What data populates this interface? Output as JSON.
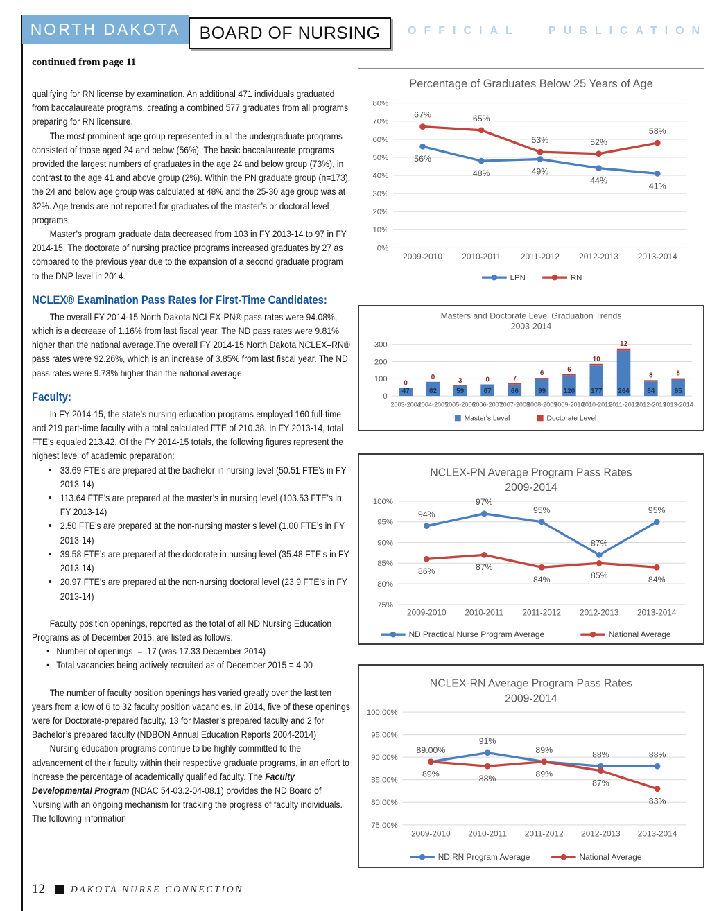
{
  "header": {
    "region_label": "NORTH DAKOTA",
    "org_label": "BOARD OF NURSING",
    "publication_label": "OFFICIAL PUBLICATION",
    "continued_note": "continued from page 11"
  },
  "palette": {
    "masthead_blue": "#7bafd8",
    "publication_pale_blue": "#b9d3ea",
    "heading_blue": "#15539b",
    "series_blue": "#4a7ebe",
    "series_red": "#c2443c"
  },
  "article": {
    "flow": [
      {
        "kind": "p",
        "text": "qualifying for RN license by examination. An additional 471 individuals graduated from baccalaureate programs, creating a combined 577 graduates from all programs preparing for RN licensure."
      },
      {
        "kind": "p",
        "indent": true,
        "text": "The most prominent age group represented in all the undergraduate programs consisted of those aged 24 and below (56%). The basic baccalaureate programs provided the largest numbers of graduates in the age 24 and below group (73%), in contrast to the age 41 and above group (2%). Within the PN graduate group (n=173), the 24 and below age group was calculated at 48% and the 25-30 age group was at 32%. Age trends are not reported for graduates of the master’s or doctoral level programs."
      },
      {
        "kind": "p",
        "indent": true,
        "text": "Master’s program graduate data decreased from 103 in FY 2013-14 to 97 in FY 2014-15. The doctorate of nursing practice programs increased graduates by 27 as compared to the previous year due to the expansion of a second graduate program to the DNP level in 2014."
      },
      {
        "kind": "h",
        "text": "NCLEX® Examination Pass Rates for First-Time Candidates:"
      },
      {
        "kind": "p",
        "indent": true,
        "text": "The overall FY 2014-15 North Dakota NCLEX-PN® pass rates were 94.08%, which is a decrease of 1.16% from last fiscal year. The ND pass rates were 9.81% higher than the national average.The overall FY 2014-15 North Dakota NCLEX–RN® pass rates were 92.26%, which is an increase of 3.85% from last fiscal year. The ND pass rates were 9.73% higher than the national average."
      },
      {
        "kind": "h",
        "text": "Faculty:"
      },
      {
        "kind": "p",
        "indent": true,
        "text": "In FY 2014-15, the state’s nursing education programs employed 160 full-time and 219 part-time faculty with a total calculated FTE of 210.38. In FY 2013-14, total FTE’s equaled 213.42. Of the FY 2014-15 totals, the following figures represent the highest level of academic preparation:"
      },
      {
        "kind": "ul",
        "style": "disc",
        "items": [
          "33.69 FTE’s are prepared at the bachelor in nursing level (50.51 FTE’s in FY 2013-14)",
          "113.64 FTE’s are prepared at the master’s in nursing level (103.53 FTE’s in FY 2013-14)",
          "2.50 FTE’s are prepared at the non-nursing master’s level (1.00 FTE’s in FY 2013-14)",
          "39.58 FTE’s are prepared at the doctorate in nursing level (35.48 FTE’s in FY 2013-14)",
          "20.97 FTE’s are prepared at the non-nursing doctoral level (23.9 FTE’s in FY 2013-14)"
        ]
      },
      {
        "kind": "spacer"
      },
      {
        "kind": "p",
        "indent": true,
        "text": "Faculty position openings, reported as the total of all ND Nursing Education Programs as of December 2015, are listed as follows:"
      },
      {
        "kind": "ul",
        "style": "square",
        "items": [
          "Number of openings  =  17 (was 17.33 December 2014)",
          "Total vacancies being actively recruited as of December 2015 = 4.00"
        ]
      },
      {
        "kind": "spacer"
      },
      {
        "kind": "p",
        "indent": true,
        "text": "The number of faculty position openings has varied greatly over the last ten years from a low of 6 to 32 faculty position vacancies. In 2014, five of these openings were for Doctorate-prepared faculty, 13 for Master’s prepared faculty and 2 for Bachelor’s prepared faculty (NDBON Annual Education Reports 2004-2014)"
      },
      {
        "kind": "p",
        "indent": true,
        "runs": [
          {
            "t": "Nursing education programs continue to be highly committed to the advancement of their faculty within their respective graduate programs, in an effort to increase the percentage of academically qualified faculty. The "
          },
          {
            "t": "Faculty Developmental Program",
            "b": true,
            "i": true
          },
          {
            "t": " (NDAC 54-03.2-04-08.1) provides the ND Board of Nursing with an ongoing mechanism for tracking the progress of faculty individuals. The following information"
          }
        ]
      }
    ]
  },
  "footer": {
    "page_number": "12",
    "publication_name": "DAKOTA NURSE CONNECTION"
  },
  "chart_data": [
    {
      "type": "line",
      "title": "Percentage of Graduates Below 25 Years of Age",
      "categories": [
        "2009-2010",
        "2010-2011",
        "2011-2012",
        "2012-2013",
        "2013-2014"
      ],
      "series": [
        {
          "name": "LPN",
          "color": "#4a7ebe",
          "values": [
            56,
            48,
            49,
            44,
            41
          ],
          "labels": [
            "56%",
            "48%",
            "49%",
            "44%",
            "41%"
          ],
          "label_position": "below"
        },
        {
          "name": "RN",
          "color": "#c2443c",
          "values": [
            67,
            65,
            53,
            52,
            58
          ],
          "labels": [
            "67%",
            "65%",
            "53%",
            "52%",
            "58%"
          ],
          "label_position": "above"
        }
      ],
      "ylim": [
        0,
        80
      ],
      "ytick_labels": [
        "0%",
        "10%",
        "20%",
        "30%",
        "40%",
        "50%",
        "60%",
        "70%",
        "80%"
      ],
      "grid": true,
      "legend_position": "bottom"
    },
    {
      "type": "bar",
      "stacked": true,
      "title": "Masters and Doctorate Level Graduation Trends",
      "subtitle": "2003-2014",
      "categories": [
        "2003-2004",
        "2004-2005",
        "2005-2006",
        "2006-2007",
        "2007-2008",
        "2008-2009",
        "2009-2010",
        "2010-2011",
        "2011-2012",
        "2012-2013",
        "2013-2014"
      ],
      "series": [
        {
          "name": "Master's Level",
          "color": "#4a7ebe",
          "values": [
            47,
            82,
            59,
            67,
            66,
            99,
            120,
            177,
            264,
            84,
            95
          ],
          "label_color": "#17375e"
        },
        {
          "name": "Doctorate Level",
          "color": "#c2443c",
          "values": [
            0,
            0,
            3,
            0,
            7,
            6,
            6,
            10,
            12,
            8,
            8
          ],
          "label_color": "#7f2f2d"
        }
      ],
      "ylim": [
        0,
        300
      ],
      "ytick_labels": [
        "0",
        "100",
        "200",
        "300"
      ],
      "grid": true,
      "legend_position": "bottom"
    },
    {
      "type": "line",
      "title": "NCLEX-PN Average Program Pass Rates",
      "subtitle": "2009-2014",
      "categories": [
        "2009-2010",
        "2010-2011",
        "2011-2012",
        "2012-2013",
        "2013-2014"
      ],
      "series": [
        {
          "name": "ND Practical Nurse Program Average",
          "color": "#4a7ebe",
          "values": [
            94,
            97,
            95,
            87,
            95
          ],
          "labels": [
            "94%",
            "97%",
            "95%",
            "87%",
            "95%"
          ],
          "label_position": "above"
        },
        {
          "name": "National Average",
          "color": "#c2443c",
          "values": [
            86,
            87,
            84,
            85,
            84
          ],
          "labels": [
            "86%",
            "87%",
            "84%",
            "85%",
            "84%"
          ],
          "label_position": "below"
        }
      ],
      "ylim": [
        75,
        100
      ],
      "ytick_labels": [
        "75%",
        "80%",
        "85%",
        "90%",
        "95%",
        "100%"
      ],
      "grid": true,
      "legend_position": "bottom"
    },
    {
      "type": "line",
      "title": "NCLEX-RN Average Program Pass Rates",
      "subtitle": "2009-2014",
      "categories": [
        "2009-2010",
        "2010-2011",
        "2011-2012",
        "2012-2013",
        "2013-2014"
      ],
      "series": [
        {
          "name": "ND RN Program Average",
          "color": "#4a7ebe",
          "values": [
            89,
            91,
            89,
            88,
            88
          ],
          "labels": [
            "89.00%",
            "91%",
            "89%",
            "88%",
            "88%"
          ],
          "label_position": "above"
        },
        {
          "name": "National Average",
          "color": "#c2443c",
          "values": [
            89,
            88,
            89,
            87,
            83
          ],
          "labels": [
            "89%",
            "88%",
            "89%",
            "87%",
            "83%"
          ],
          "label_position": "below"
        }
      ],
      "ylim": [
        75,
        100
      ],
      "ytick_labels": [
        "75.00%",
        "80.00%",
        "85.00%",
        "90.00%",
        "95.00%",
        "100.00%"
      ],
      "grid": true,
      "legend_position": "bottom"
    }
  ]
}
